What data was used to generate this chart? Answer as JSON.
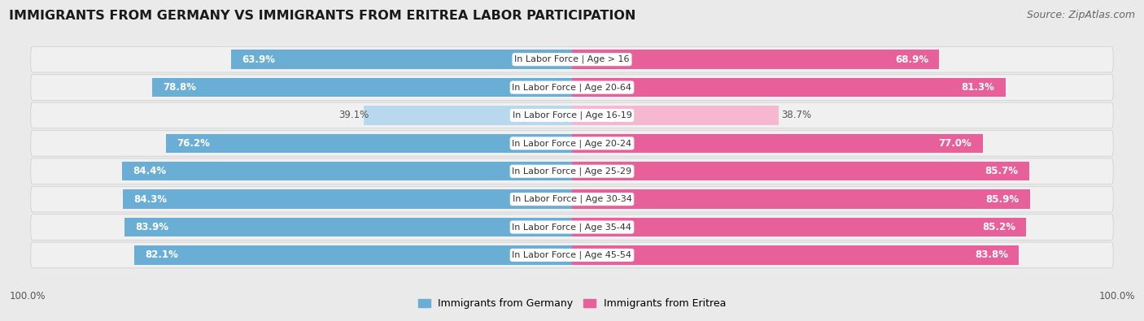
{
  "title": "IMMIGRANTS FROM GERMANY VS IMMIGRANTS FROM ERITREA LABOR PARTICIPATION",
  "source": "Source: ZipAtlas.com",
  "categories": [
    "In Labor Force | Age > 16",
    "In Labor Force | Age 20-64",
    "In Labor Force | Age 16-19",
    "In Labor Force | Age 20-24",
    "In Labor Force | Age 25-29",
    "In Labor Force | Age 30-34",
    "In Labor Force | Age 35-44",
    "In Labor Force | Age 45-54"
  ],
  "germany_values": [
    63.9,
    78.8,
    39.1,
    76.2,
    84.4,
    84.3,
    83.9,
    82.1
  ],
  "eritrea_values": [
    68.9,
    81.3,
    38.7,
    77.0,
    85.7,
    85.9,
    85.2,
    83.8
  ],
  "germany_color": "#6aaed6",
  "eritrea_color": "#e8609a",
  "germany_color_light": "#b8d8ee",
  "eritrea_color_light": "#f5b8d0",
  "background_color": "#eaeaea",
  "row_bg_color": "#dcdcdc",
  "title_fontsize": 11.5,
  "source_fontsize": 9,
  "value_fontsize": 8.5,
  "cat_fontsize": 8,
  "legend_label_germany": "Immigrants from Germany",
  "legend_label_eritrea": "Immigrants from Eritrea",
  "footer_value": "100.0%",
  "xlim": 100
}
